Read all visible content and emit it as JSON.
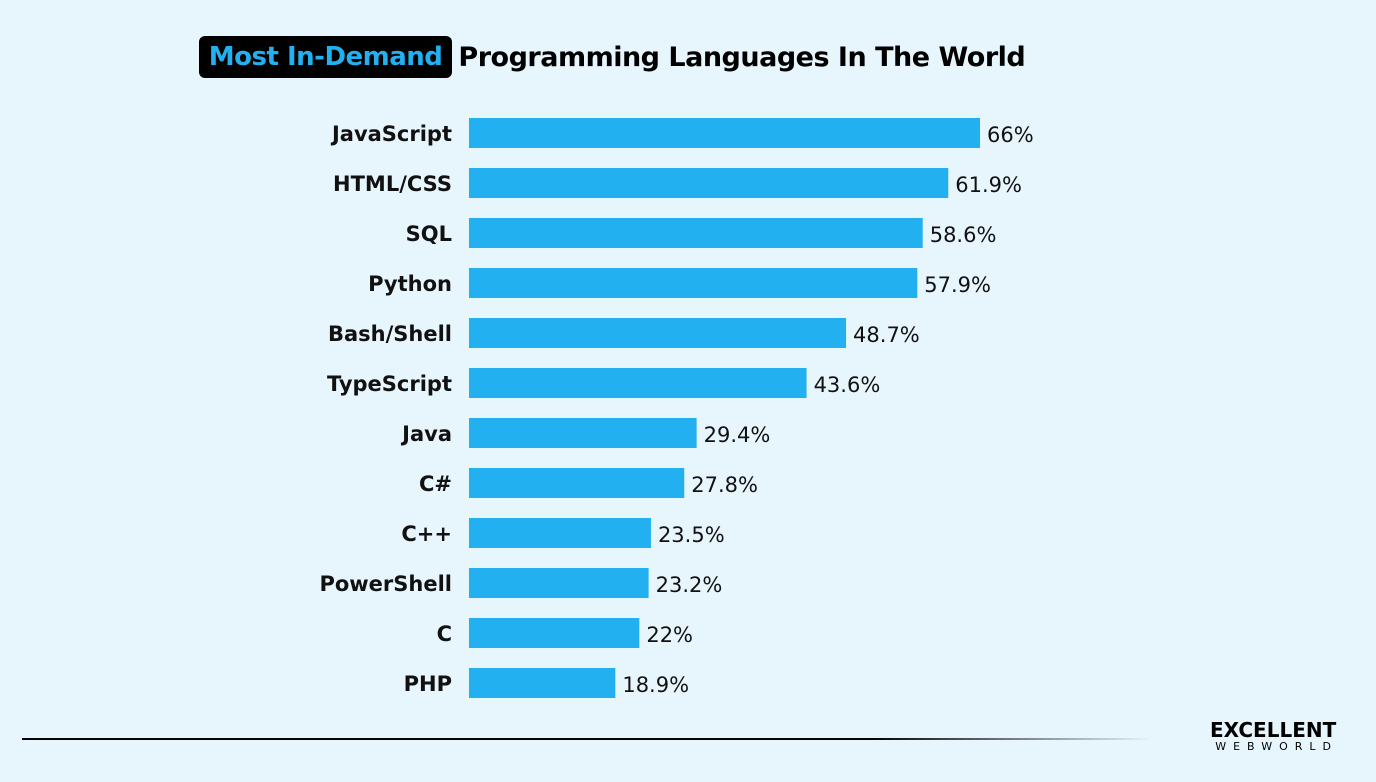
{
  "chart_data": {
    "type": "bar",
    "orientation": "horizontal",
    "title_highlight": "Most In-Demand",
    "title_rest": "Programming Languages In The World",
    "categories": [
      "JavaScript",
      "HTML/CSS",
      "SQL",
      "Python",
      "Bash/Shell",
      "TypeScript",
      "Java",
      "C#",
      "C++",
      "PowerShell",
      "C",
      "PHP"
    ],
    "values": [
      66,
      61.9,
      58.6,
      57.9,
      48.7,
      43.6,
      29.4,
      27.8,
      23.5,
      23.2,
      22,
      18.9
    ],
    "value_labels": [
      "66%",
      "61.9%",
      "58.6%",
      "57.9%",
      "48.7%",
      "43.6%",
      "29.4%",
      "27.8%",
      "23.5%",
      "23.2%",
      "22%",
      "18.9%"
    ],
    "xlim": [
      0,
      66
    ],
    "grid": false,
    "bar_color": "#22b0f0"
  },
  "logo": {
    "top": "EXCELLENT",
    "bottom": "WEBWORLD"
  }
}
